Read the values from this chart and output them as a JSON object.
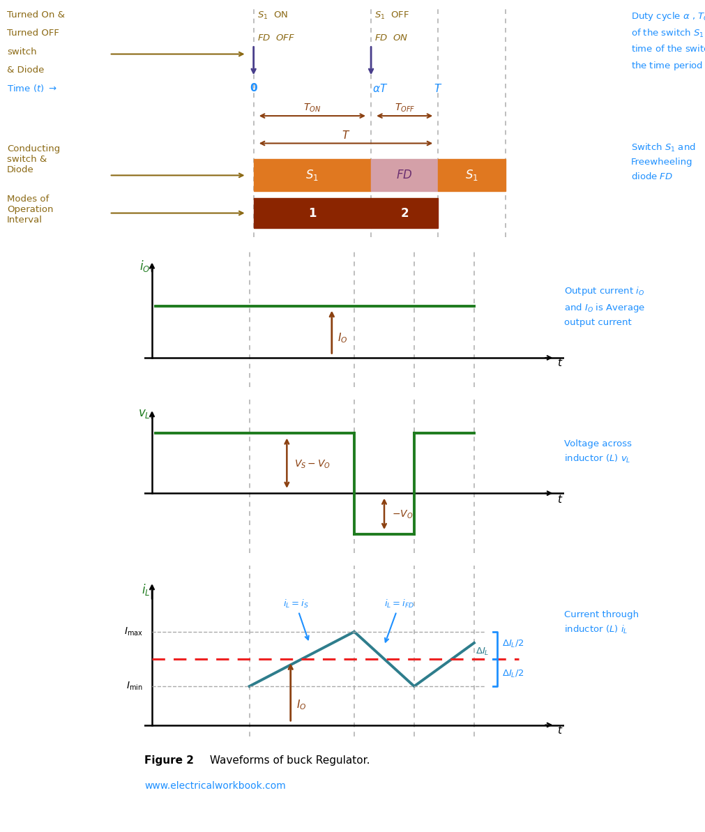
{
  "bg_color": "#ffffff",
  "dark_gold": "#8B6914",
  "purple": "#483D8B",
  "blue_cyan": "#1E90FF",
  "green": "#1E7B1E",
  "orange": "#E07820",
  "pink_fd": "#D4A0A8",
  "brown_mode": "#8B2500",
  "dashed_gray": "#AAAAAA",
  "red_dashed": "#EE2222",
  "teal_il": "#2E7D8C",
  "brown_arrow": "#8B4010",
  "dline_x": [
    0.26,
    0.54,
    0.7,
    0.86
  ],
  "fig_caption_bold": "Figure 2",
  "fig_caption_rest": " Waveforms of buck Regulator.",
  "website": "www.electricalworkbook.com"
}
